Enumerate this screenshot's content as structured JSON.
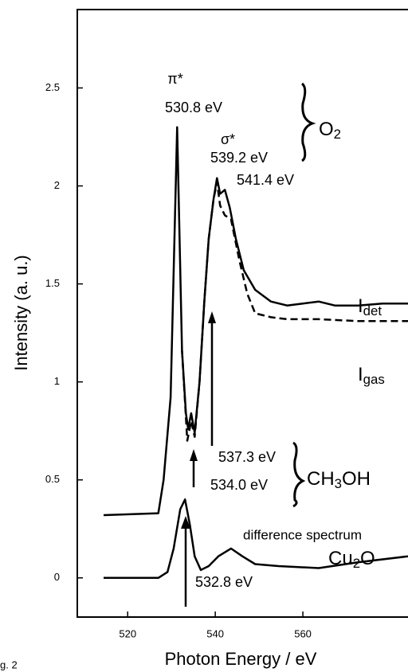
{
  "chart_data": {
    "type": "line",
    "xlabel": "Photon Energy / eV",
    "ylabel": "Intensity (a. u.)",
    "xlim": [
      508.5,
      584
    ],
    "xticks": [
      520,
      540,
      560
    ],
    "ylim": [
      -0.2,
      2.9
    ],
    "yticks": [
      0,
      0.5,
      1,
      1.5,
      2,
      2.5
    ],
    "series": [
      {
        "color": "#000000",
        "style": "solid",
        "x": [
          514.5,
          527,
          528.2,
          529.8,
          531.3,
          532.4,
          533.3,
          533.8,
          534.5,
          535.3,
          536.4,
          537.5,
          538.5,
          539.6,
          540.4,
          541.1,
          542.2,
          543.3,
          544.7,
          546.5,
          549.1,
          552.7,
          556.4,
          560,
          563.6,
          567.3,
          572.7,
          578.2,
          584
        ],
        "values": [
          0.32,
          0.33,
          0.5,
          0.92,
          2.3,
          1.16,
          0.84,
          0.76,
          0.84,
          0.74,
          1.0,
          1.41,
          1.73,
          1.93,
          2.04,
          1.96,
          1.98,
          1.89,
          1.73,
          1.57,
          1.47,
          1.41,
          1.39,
          1.4,
          1.41,
          1.39,
          1.39,
          1.4,
          1.4
        ]
      },
      {
        "color": "#000000",
        "style": "dashed",
        "x": [
          532.4,
          533.6,
          534.5,
          535.3,
          536.4,
          537.5,
          538.5,
          539.6,
          540.4,
          541.1,
          542.2,
          543.6,
          545.5,
          547.3,
          549.1,
          552.7,
          556.4,
          563.6,
          572.7,
          584
        ],
        "values": [
          1.16,
          0.7,
          0.8,
          0.72,
          1.0,
          1.41,
          1.73,
          1.93,
          2.02,
          1.9,
          1.85,
          1.83,
          1.62,
          1.45,
          1.35,
          1.33,
          1.32,
          1.32,
          1.31,
          1.31
        ]
      },
      {
        "color": "#000000",
        "style": "solid",
        "x": [
          514.5,
          527,
          529.1,
          530.5,
          532,
          533.1,
          534.2,
          535.3,
          536.7,
          538.5,
          540.7,
          543.6,
          546.2,
          549.1,
          554.5,
          563.6,
          572.7,
          584
        ],
        "values": [
          0,
          0,
          0.03,
          0.15,
          0.35,
          0.4,
          0.27,
          0.11,
          0.04,
          0.06,
          0.11,
          0.15,
          0.11,
          0.07,
          0.06,
          0.05,
          0.08,
          0.11
        ]
      }
    ],
    "annotations": [
      {
        "text": "π*"
      },
      {
        "text": "530.8 eV"
      },
      {
        "text": "σ*"
      },
      {
        "text": "539.2 eV"
      },
      {
        "text": "541.4 eV"
      },
      {
        "parts": [
          "O",
          "2"
        ]
      },
      {
        "parts": [
          "I",
          "det"
        ]
      },
      {
        "parts": [
          "I",
          "gas"
        ]
      },
      {
        "text": "537.3 eV"
      },
      {
        "text": "534.0 eV"
      },
      {
        "parts": [
          "CH",
          "3",
          "OH"
        ]
      },
      {
        "text": "difference spectrum"
      },
      {
        "parts": [
          "Cu",
          "2",
          "O"
        ]
      },
      {
        "text": "532.8 eV"
      },
      {
        "text": "g. 2"
      }
    ]
  }
}
